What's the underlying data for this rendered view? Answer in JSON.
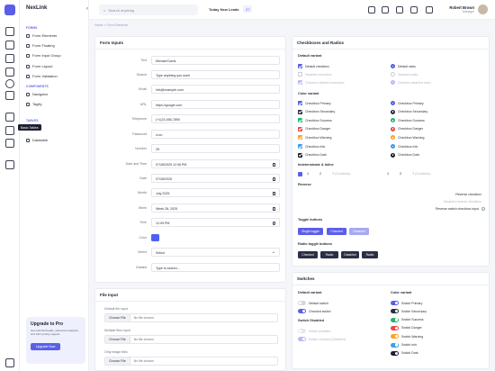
{
  "app": {
    "brand": "NexLink"
  },
  "topbar": {
    "search_placeholder": "Search anything",
    "leads_label": "Today New Leads",
    "leads_count": "27",
    "user_name": "Robert Brown",
    "user_role": "Manager"
  },
  "sidebar": {
    "section_forms": "FORMS",
    "forms_items": [
      "Form Elements",
      "Form Floating",
      "Form Input Group",
      "Form Layout",
      "Form Validation"
    ],
    "section_components": "COMPONENTS",
    "component_items": [
      "Navigator",
      "Tagify"
    ],
    "section_tables": "TABLES",
    "table_items": [
      "Datatable"
    ],
    "tooltip": "Basic Tables",
    "upgrade": {
      "title": "Upgrade to Pro",
      "text": "Get unlimited leads, advanced analytics, and 24/7 priority support.",
      "button": "Upgrade Now"
    }
  },
  "breadcrumb": "Home  >  Form Elements",
  "form_inputs": {
    "title": "Form Inputs",
    "rows": [
      {
        "label": "Text",
        "value": "Michael Davis"
      },
      {
        "label": "Search",
        "value": "Type anything you want"
      },
      {
        "label": "Email",
        "value": "info@example.com"
      },
      {
        "label": "URL",
        "value": "https://google.com"
      },
      {
        "label": "Telephone",
        "value": "(+1)23-456-7890"
      },
      {
        "label": "Password",
        "value": "••••••"
      },
      {
        "label": "Number",
        "value": "25"
      },
      {
        "label": "Date and Time",
        "value": "07/28/2025 12:06 PM"
      },
      {
        "label": "Date",
        "value": "07/28/2025"
      },
      {
        "label": "Month",
        "value": "July 2025"
      },
      {
        "label": "Week",
        "value": "Week 28, 2025"
      },
      {
        "label": "Time",
        "value": "12:05 PM"
      },
      {
        "label": "Color",
        "value": ""
      },
      {
        "label": "Select",
        "value": "Select"
      },
      {
        "label": "Datalist",
        "value": "Type to search..."
      }
    ],
    "color_value": "#4b63f2"
  },
  "file_input": {
    "title": "File Input",
    "groups": [
      {
        "label": "Default file input",
        "button": "Choose File",
        "status": "No file chosen"
      },
      {
        "label": "Multiple files input",
        "button": "Choose File",
        "status": "No file chosen"
      },
      {
        "label": "Only image files",
        "button": "Choose File",
        "status": "No file chosen"
      }
    ]
  },
  "checkboxes": {
    "title": "Checkboxes and Radios",
    "default_variant": "Default variant",
    "default_checks": [
      "Default checkbox",
      "Disabled checkbox",
      "Checked disabled checkbox"
    ],
    "default_radios": [
      "Default radio",
      "Disabled radio",
      "Checked disabled radio"
    ],
    "color_variant": "Color variant",
    "color_checks": [
      "Checkbox Primary",
      "Checkbox Secondary",
      "Checkbox Success",
      "Checkbox Danger",
      "Checkbox Warning",
      "Checkbox Info",
      "Checkbox Dark"
    ],
    "color_radios": [
      "Checkbox Primary",
      "Checkbox Secondary",
      "Checkbox Success",
      "Checkbox Danger",
      "Checkbox Warning",
      "Checkbox Info",
      "Checkbox Dark"
    ],
    "colors": [
      "#5b5fe8",
      "#2b2f3a",
      "#22b573",
      "#e5484d",
      "#f5a524",
      "#3b9ded",
      "#1d2030"
    ],
    "indeterminate_label": "Indeterminate & Inline",
    "inline_left": [
      "1",
      "2",
      "3 (Disabled)"
    ],
    "inline_right": [
      "1",
      "2",
      "3 (Disabled)"
    ],
    "reverse_label": "Reverse",
    "reverse_items": [
      "Reverse checkbox",
      "Disabled reverse checkbox",
      "Reverse switch checkbox input"
    ],
    "toggle_label": "Toggle buttons",
    "toggles": [
      "Single toggle",
      "Checked",
      "Disabled"
    ],
    "radio_toggle_label": "Radio toggle buttons",
    "radio_toggles": [
      "Checked",
      "Radio",
      "Disabled",
      "Radio"
    ]
  },
  "switches": {
    "title": "Switches",
    "default_variant": "Default variant",
    "default_items": [
      "Default switch",
      "Checked switch"
    ],
    "switch_disabled": "Switch Disabled",
    "disabled_items": [
      "Switch disabled",
      "Switch checked (Disabled)"
    ],
    "color_variant": "Color variant",
    "color_items": [
      "Switch Primary",
      "Switch Secondary",
      "Switch Success",
      "Switch Danger",
      "Switch Warning",
      "Switch Info",
      "Switch Dark"
    ]
  }
}
